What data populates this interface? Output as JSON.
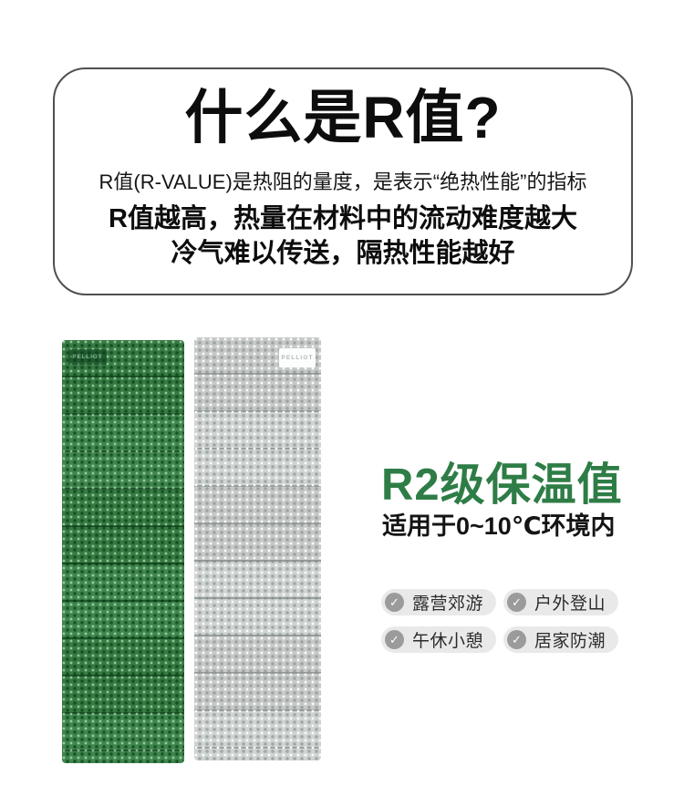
{
  "info_card": {
    "title": "什么是R值?",
    "subtitle": "R值(R-VALUE)是热阻的量度，是表示“绝热性能”的指标",
    "highlight_line1": "R值越高，热量在材料中的流动难度越大",
    "highlight_line2": "冷气难以传送，隔热性能越好"
  },
  "product": {
    "brand": "PELLIOT",
    "rating_title": "R2级保温值",
    "rating_subtitle": "适用于0~10℃环境内",
    "check_icon": "✓",
    "tags": [
      {
        "label": "露营郊游"
      },
      {
        "label": "户外登山"
      },
      {
        "label": "午休小憩"
      },
      {
        "label": "居家防潮"
      }
    ]
  },
  "colors": {
    "accent_green": "#2e7d46",
    "mat_green": "#2d7a3c",
    "mat_gray": "#c7cbca",
    "card_border": "#4f4f4f",
    "tag_background": "#e9e9e9",
    "tag_check_background": "#9b9b9b"
  }
}
